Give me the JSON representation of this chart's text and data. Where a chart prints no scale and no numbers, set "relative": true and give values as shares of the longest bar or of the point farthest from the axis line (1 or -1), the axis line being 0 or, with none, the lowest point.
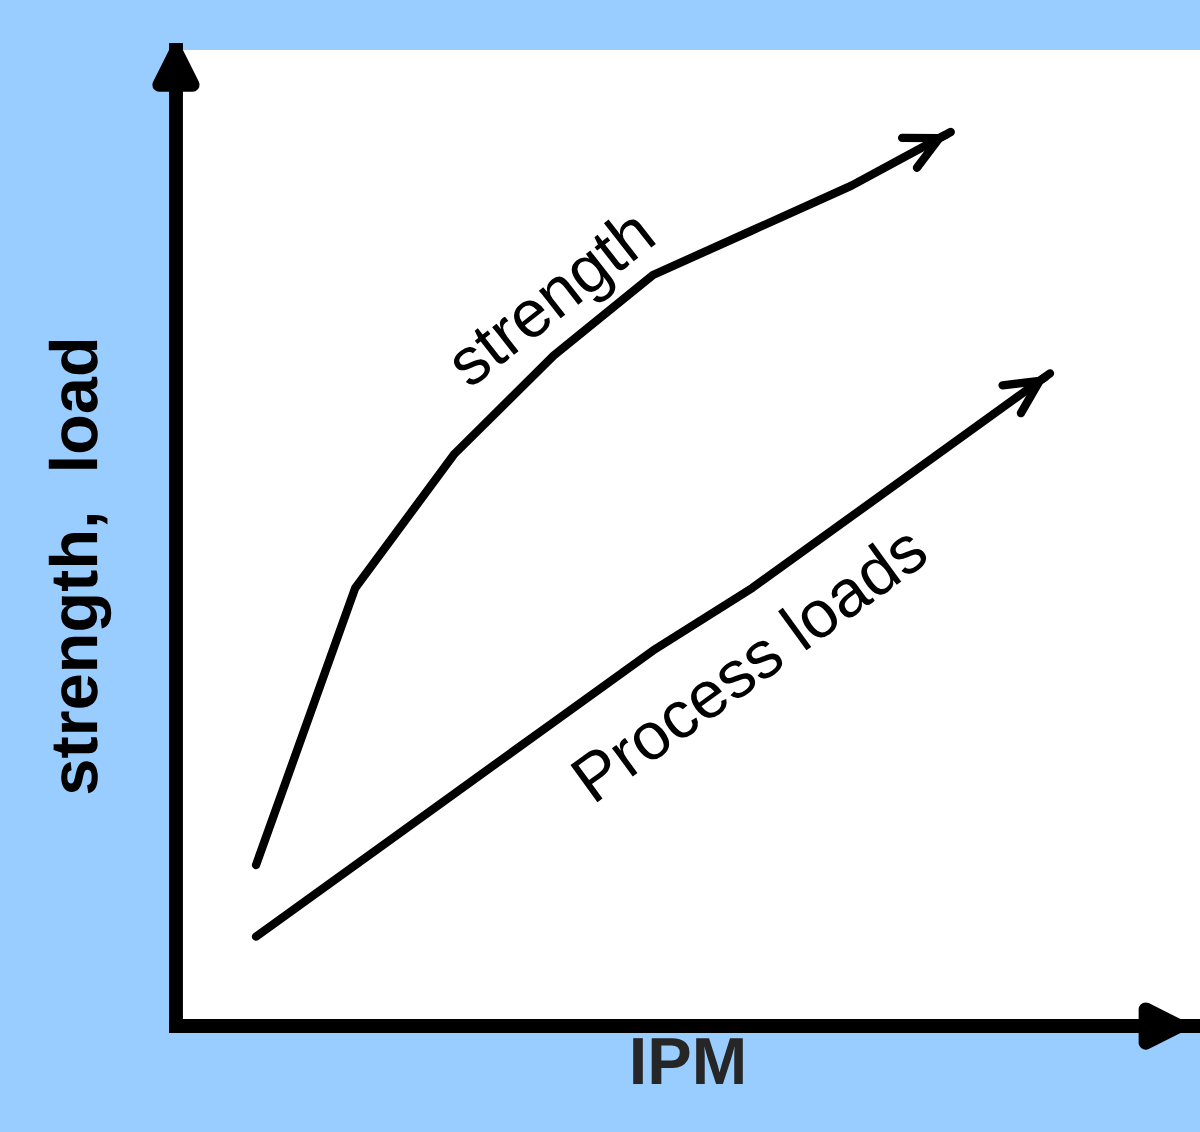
{
  "chart_data": {
    "type": "line",
    "relative": true,
    "xlabel": "IPM",
    "ylabel": "strength,  load",
    "categories": [
      null,
      null,
      null,
      null,
      null,
      null,
      null,
      null,
      null
    ],
    "legend": false,
    "grid": false,
    "marker": "none",
    "line_style": "solid",
    "series": [
      {
        "name": "strength",
        "color": "#000000",
        "values": [
          0.18,
          0.49,
          0.64,
          0.75,
          0.84,
          0.89,
          0.94,
          1.0,
          null
        ]
      },
      {
        "name": "Process loads",
        "color": "#000000",
        "values": [
          0.1,
          0.18,
          0.26,
          0.34,
          0.42,
          0.49,
          0.57,
          0.65,
          0.73
        ]
      }
    ]
  }
}
